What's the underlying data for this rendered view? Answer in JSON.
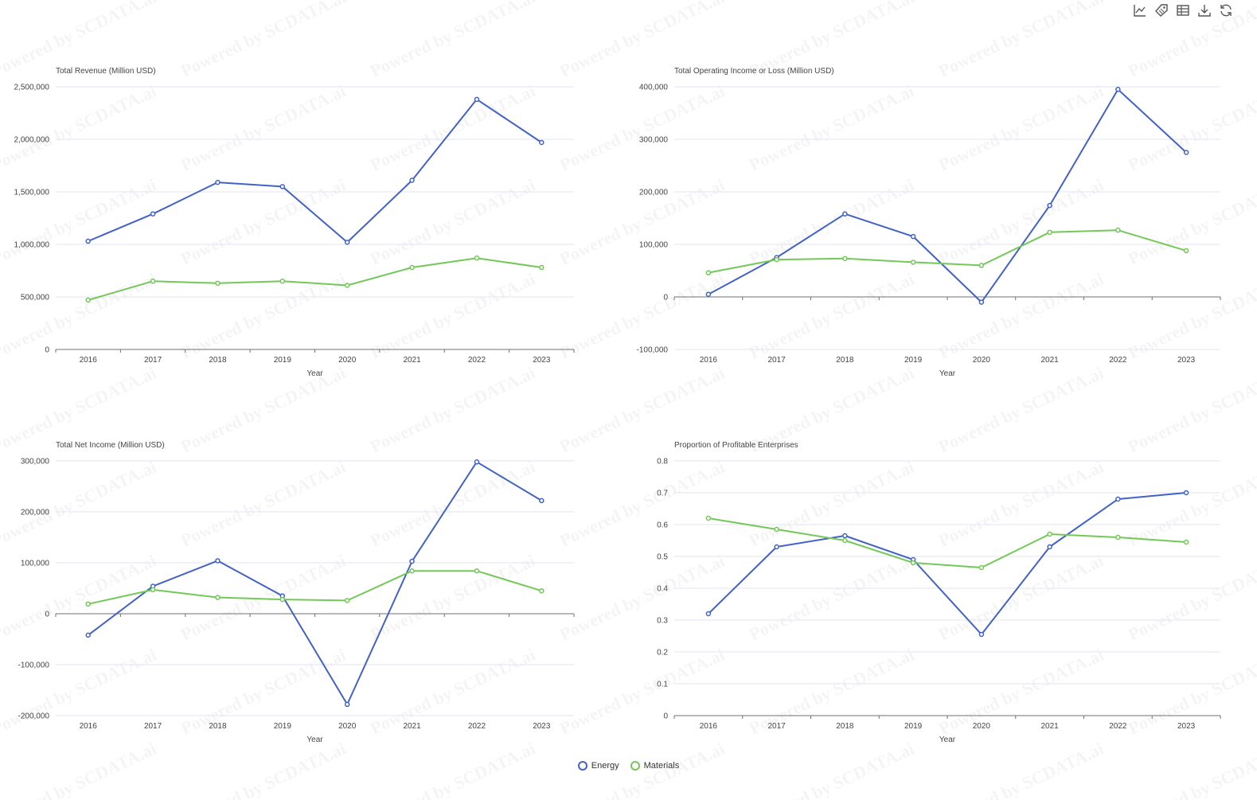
{
  "toolbar": {
    "icons": [
      "line-chart-icon",
      "tag-icon",
      "table-icon",
      "download-icon",
      "refresh-icon"
    ]
  },
  "watermark": "Powered by SCDATA.ai",
  "legend": [
    {
      "name": "Energy",
      "color": "#4262c7"
    },
    {
      "name": "Materials",
      "color": "#73c857"
    }
  ],
  "colors": {
    "energy": "#4262c7",
    "materials": "#73c857",
    "grid": "#e3e6f2",
    "axis": "#6e7079",
    "text": "#444444"
  },
  "chart_data": [
    {
      "type": "line",
      "title": "Total Revenue (Million USD)",
      "xlabel": "Year",
      "ylabel": "",
      "categories": [
        "2016",
        "2017",
        "2018",
        "2019",
        "2020",
        "2021",
        "2022",
        "2023"
      ],
      "ylim": [
        0,
        2500000
      ],
      "yticks": [
        0,
        500000,
        1000000,
        1500000,
        2000000,
        2500000
      ],
      "ytick_labels": [
        "0",
        "500,000",
        "1,000,000",
        "1,500,000",
        "2,000,000",
        "2,500,000"
      ],
      "series": [
        {
          "name": "Energy",
          "values": [
            1030000,
            1290000,
            1590000,
            1550000,
            1020000,
            1610000,
            2380000,
            1970000
          ]
        },
        {
          "name": "Materials",
          "values": [
            470000,
            650000,
            630000,
            650000,
            610000,
            780000,
            870000,
            780000
          ]
        }
      ]
    },
    {
      "type": "line",
      "title": "Total Operating Income or Loss (Million USD)",
      "xlabel": "Year",
      "ylabel": "",
      "categories": [
        "2016",
        "2017",
        "2018",
        "2019",
        "2020",
        "2021",
        "2022",
        "2023"
      ],
      "ylim": [
        -100000,
        400000
      ],
      "yticks": [
        -100000,
        0,
        100000,
        200000,
        300000,
        400000
      ],
      "ytick_labels": [
        "-100,000",
        "0",
        "100,000",
        "200,000",
        "300,000",
        "400,000"
      ],
      "series": [
        {
          "name": "Energy",
          "values": [
            5000,
            75000,
            158000,
            115000,
            -10000,
            174000,
            395000,
            275000
          ]
        },
        {
          "name": "Materials",
          "values": [
            46000,
            71000,
            73000,
            66000,
            60000,
            123000,
            127000,
            88000
          ]
        }
      ]
    },
    {
      "type": "line",
      "title": "Total Net Income (Million USD)",
      "xlabel": "Year",
      "ylabel": "",
      "categories": [
        "2016",
        "2017",
        "2018",
        "2019",
        "2020",
        "2021",
        "2022",
        "2023"
      ],
      "ylim": [
        -200000,
        300000
      ],
      "yticks": [
        -200000,
        -100000,
        0,
        100000,
        200000,
        300000
      ],
      "ytick_labels": [
        "-200,000",
        "-100,000",
        "0",
        "100,000",
        "200,000",
        "300,000"
      ],
      "series": [
        {
          "name": "Energy",
          "values": [
            -42000,
            54000,
            104000,
            35000,
            -178000,
            103000,
            298000,
            222000
          ]
        },
        {
          "name": "Materials",
          "values": [
            19000,
            47000,
            32000,
            28000,
            26000,
            84000,
            84000,
            45000
          ]
        }
      ]
    },
    {
      "type": "line",
      "title": "Proportion of Profitable Enterprises",
      "xlabel": "Year",
      "ylabel": "",
      "categories": [
        "2016",
        "2017",
        "2018",
        "2019",
        "2020",
        "2021",
        "2022",
        "2023"
      ],
      "ylim": [
        0,
        0.8
      ],
      "yticks": [
        0,
        0.1,
        0.2,
        0.3,
        0.4,
        0.5,
        0.6,
        0.7,
        0.8
      ],
      "ytick_labels": [
        "0",
        "0.1",
        "0.2",
        "0.3",
        "0.4",
        "0.5",
        "0.6",
        "0.7",
        "0.8"
      ],
      "series": [
        {
          "name": "Energy",
          "values": [
            0.32,
            0.53,
            0.565,
            0.49,
            0.255,
            0.53,
            0.68,
            0.7
          ]
        },
        {
          "name": "Materials",
          "values": [
            0.62,
            0.585,
            0.55,
            0.48,
            0.465,
            0.57,
            0.56,
            0.545
          ]
        }
      ]
    }
  ]
}
